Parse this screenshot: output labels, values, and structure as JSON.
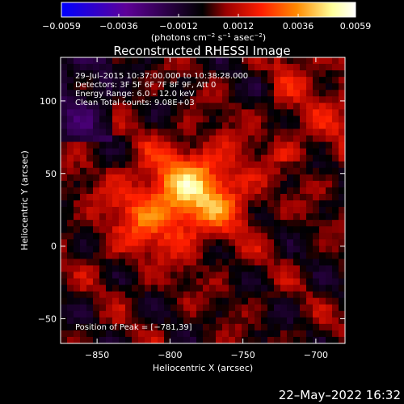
{
  "chart_data": {
    "type": "heatmap",
    "title": "Reconstructed RHESSI Image",
    "xlabel": "Heliocentric X (arcsec)",
    "ylabel": "Heliocentric Y (arcsec)",
    "xlim": [
      -875,
      -680
    ],
    "ylim": [
      -67,
      130
    ],
    "x_ticks": [
      -850,
      -800,
      -750,
      -700
    ],
    "x_tick_labels": [
      "−850",
      "−800",
      "−750",
      "−700"
    ],
    "y_ticks": [
      -50,
      0,
      50,
      100
    ],
    "y_tick_labels": [
      "−50",
      "0",
      "50",
      "100"
    ],
    "colorbar": {
      "min": -0.0059,
      "max": 0.0059,
      "ticks": [
        -0.0059,
        -0.0036,
        -0.0012,
        0.0012,
        0.0036,
        0.0059
      ],
      "tick_labels": [
        "−0.0059",
        "−0.0036",
        "−0.0012",
        "0.0012",
        "0.0036",
        "0.0059"
      ],
      "unit_parts": [
        "(photons cm",
        "−2",
        " s",
        "−1",
        " asec",
        "−2",
        ")"
      ],
      "colors": [
        "#0000ff",
        "#5e0098",
        "#000000",
        "#9a0000",
        "#ff1e00",
        "#ff8a00",
        "#ffff9a",
        "#ffffff"
      ]
    },
    "annotations": [
      "29–Jul–2015 10:37:00.000 to 10:38:28.000",
      "Detectors: 3F 5F 6F 7F 8F 9F, Att 0",
      "Energy Range: 6.0 – 12.0 keV",
      "Clean     Total counts: 9.08E+03"
    ],
    "peak_label": "Position of Peak = [−781,39]",
    "peak": [
      -781,
      39
    ],
    "footer": "22–May–2022 16:32"
  }
}
